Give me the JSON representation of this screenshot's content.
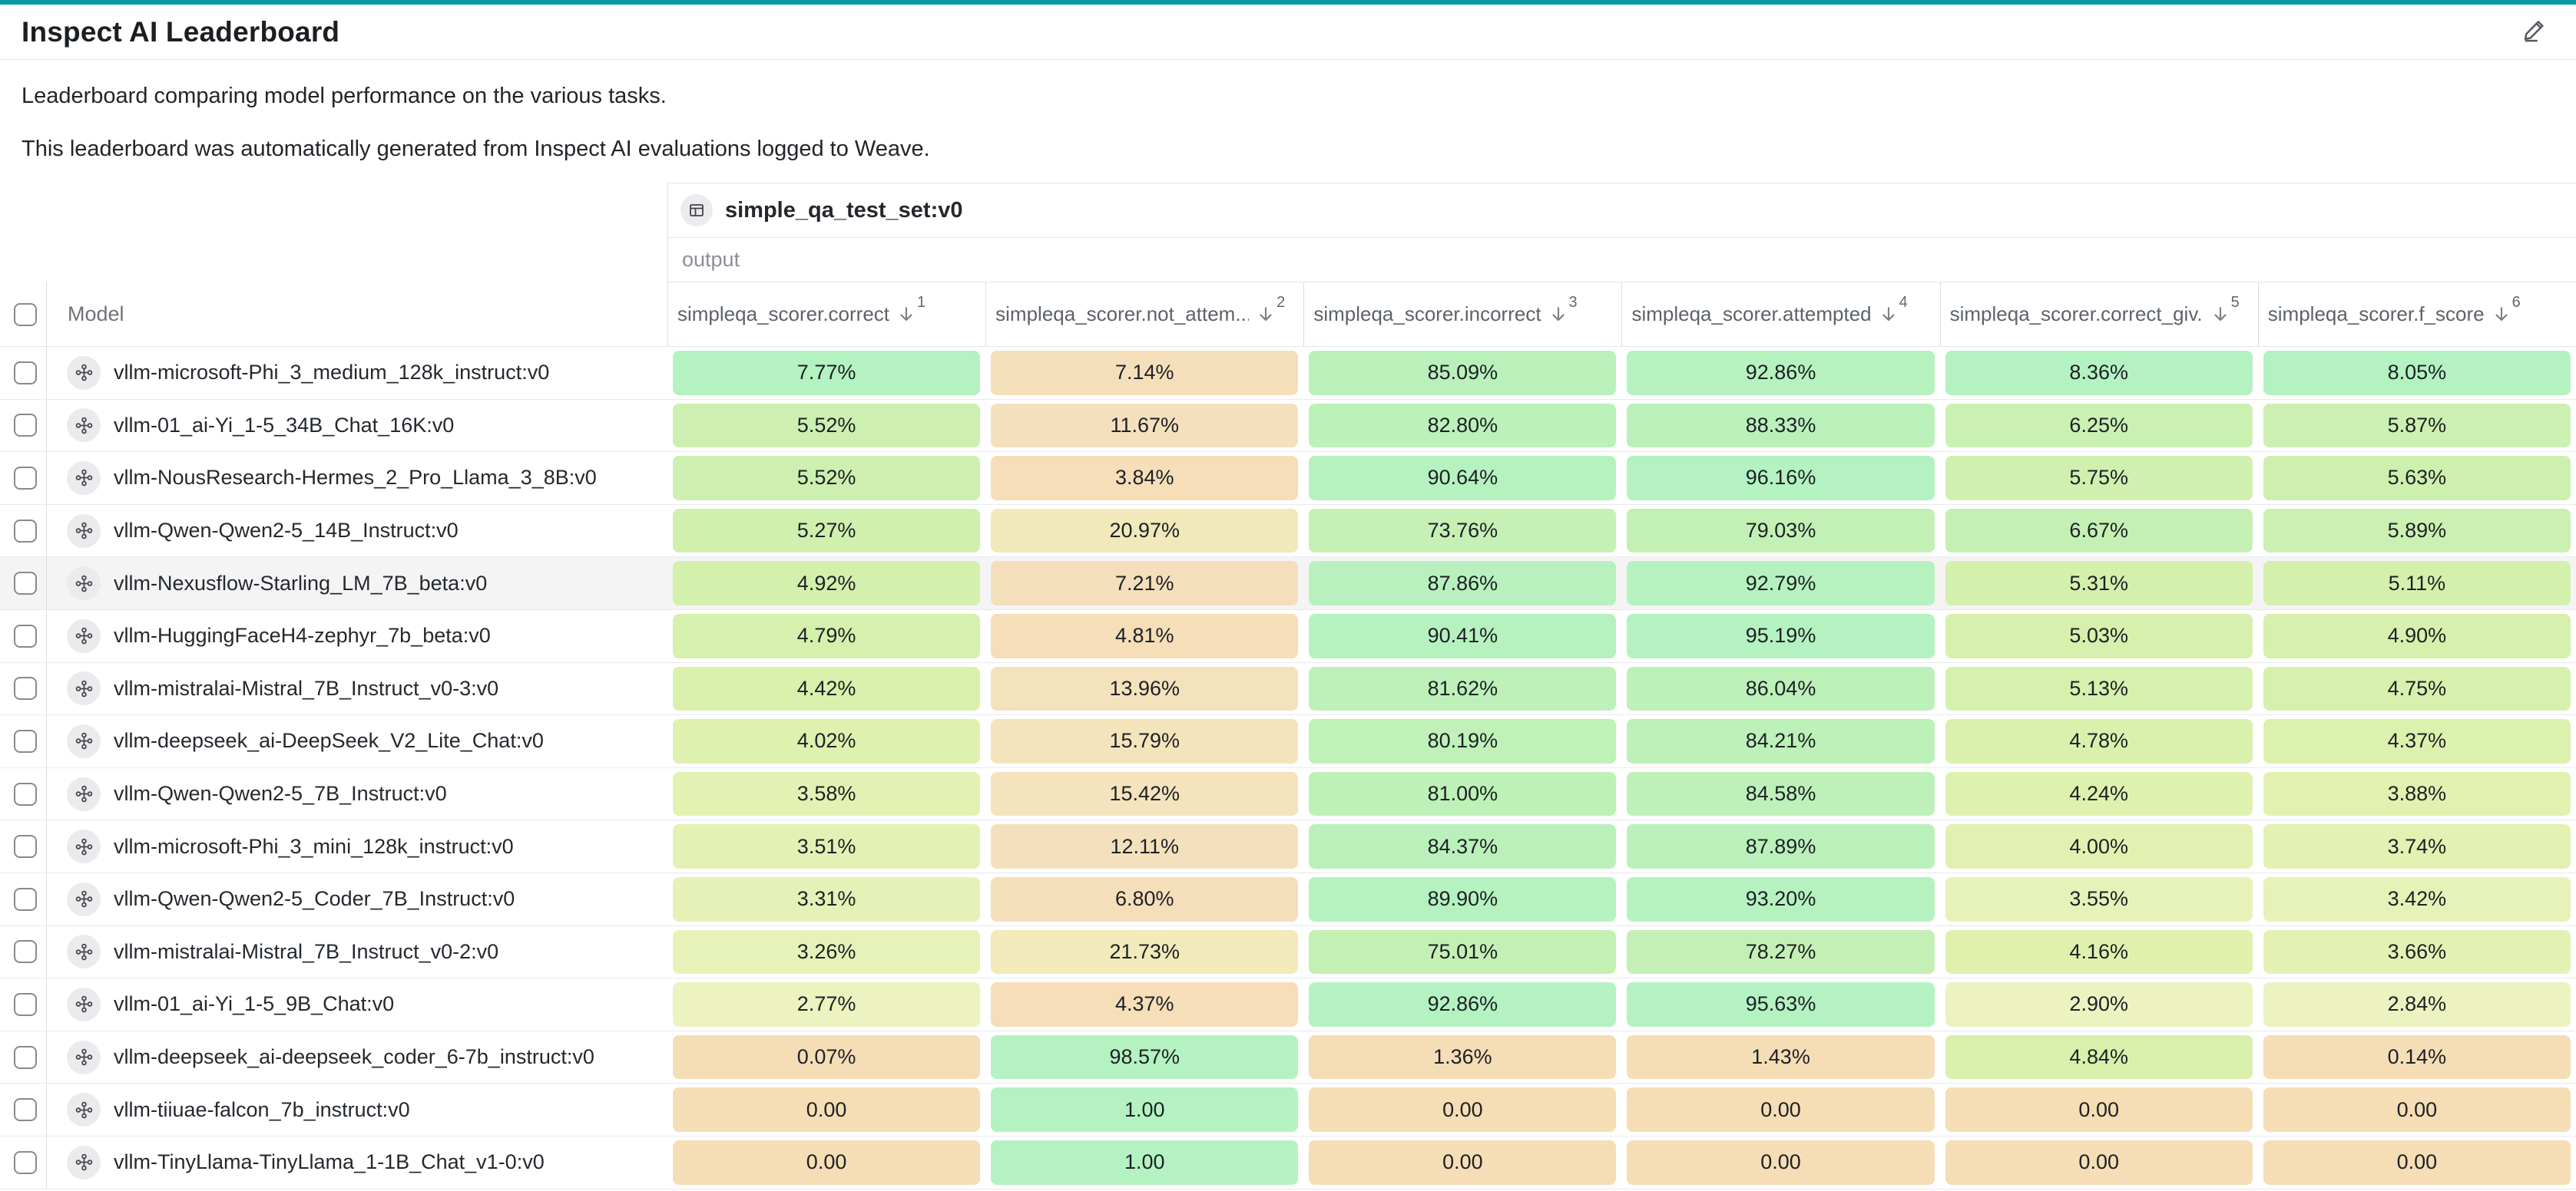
{
  "header": {
    "title": "Inspect AI Leaderboard"
  },
  "description": {
    "line1": "Leaderboard comparing model performance on the various tasks.",
    "line2": "This leaderboard was automatically generated from Inspect AI evaluations logged to Weave."
  },
  "colors": {
    "accent_bar": "#0899a2",
    "cell_gradient": [
      [
        0.0,
        "#f5ddb5"
      ],
      [
        0.12,
        "#f5e0bd"
      ],
      [
        0.22,
        "#f2eaba"
      ],
      [
        0.35,
        "#edf2c1"
      ],
      [
        0.5,
        "#e0f1ae"
      ],
      [
        0.65,
        "#d3f0ad"
      ],
      [
        0.8,
        "#c5f0b4"
      ],
      [
        0.9,
        "#bbf1ba"
      ],
      [
        1.0,
        "#b4f2c2"
      ]
    ]
  },
  "table": {
    "dataset_group": {
      "label": "simple_qa_test_set:v0",
      "icon": "table-icon"
    },
    "subgroup_label": "output",
    "model_column_header": "Model",
    "columns": [
      {
        "label": "simpleqa_scorer.correct",
        "sort_rank": "1"
      },
      {
        "label": "simpleqa_scorer.not_attem...",
        "sort_rank": "2"
      },
      {
        "label": "simpleqa_scorer.incorrect",
        "sort_rank": "3"
      },
      {
        "label": "simpleqa_scorer.attempted",
        "sort_rank": "4"
      },
      {
        "label": "simpleqa_scorer.correct_giv...",
        "sort_rank": "5"
      },
      {
        "label": "simpleqa_scorer.f_score",
        "sort_rank": "6"
      }
    ],
    "rows": [
      {
        "model": "vllm-microsoft-Phi_3_medium_128k_instruct:v0",
        "highlighted": false,
        "cells": [
          {
            "text": "7.77%",
            "value": 0.0777
          },
          {
            "text": "7.14%",
            "value": 0.0714
          },
          {
            "text": "85.09%",
            "value": 0.8509
          },
          {
            "text": "92.86%",
            "value": 0.9286
          },
          {
            "text": "8.36%",
            "value": 0.0836
          },
          {
            "text": "8.05%",
            "value": 0.0805
          }
        ]
      },
      {
        "model": "vllm-01_ai-Yi_1-5_34B_Chat_16K:v0",
        "highlighted": false,
        "cells": [
          {
            "text": "5.52%",
            "value": 0.0552
          },
          {
            "text": "11.67%",
            "value": 0.1167
          },
          {
            "text": "82.80%",
            "value": 0.828
          },
          {
            "text": "88.33%",
            "value": 0.8833
          },
          {
            "text": "6.25%",
            "value": 0.0625
          },
          {
            "text": "5.87%",
            "value": 0.0587
          }
        ]
      },
      {
        "model": "vllm-NousResearch-Hermes_2_Pro_Llama_3_8B:v0",
        "highlighted": false,
        "cells": [
          {
            "text": "5.52%",
            "value": 0.0552
          },
          {
            "text": "3.84%",
            "value": 0.0384
          },
          {
            "text": "90.64%",
            "value": 0.9064
          },
          {
            "text": "96.16%",
            "value": 0.9616
          },
          {
            "text": "5.75%",
            "value": 0.0575
          },
          {
            "text": "5.63%",
            "value": 0.0563
          }
        ]
      },
      {
        "model": "vllm-Qwen-Qwen2-5_14B_Instruct:v0",
        "highlighted": false,
        "cells": [
          {
            "text": "5.27%",
            "value": 0.0527
          },
          {
            "text": "20.97%",
            "value": 0.2097
          },
          {
            "text": "73.76%",
            "value": 0.7376
          },
          {
            "text": "79.03%",
            "value": 0.7903
          },
          {
            "text": "6.67%",
            "value": 0.0667
          },
          {
            "text": "5.89%",
            "value": 0.0589
          }
        ]
      },
      {
        "model": "vllm-Nexusflow-Starling_LM_7B_beta:v0",
        "highlighted": true,
        "cells": [
          {
            "text": "4.92%",
            "value": 0.0492
          },
          {
            "text": "7.21%",
            "value": 0.0721
          },
          {
            "text": "87.86%",
            "value": 0.8786
          },
          {
            "text": "92.79%",
            "value": 0.9279
          },
          {
            "text": "5.31%",
            "value": 0.0531
          },
          {
            "text": "5.11%",
            "value": 0.0511
          }
        ]
      },
      {
        "model": "vllm-HuggingFaceH4-zephyr_7b_beta:v0",
        "highlighted": false,
        "cells": [
          {
            "text": "4.79%",
            "value": 0.0479
          },
          {
            "text": "4.81%",
            "value": 0.0481
          },
          {
            "text": "90.41%",
            "value": 0.9041
          },
          {
            "text": "95.19%",
            "value": 0.9519
          },
          {
            "text": "5.03%",
            "value": 0.0503
          },
          {
            "text": "4.90%",
            "value": 0.049
          }
        ]
      },
      {
        "model": "vllm-mistralai-Mistral_7B_Instruct_v0-3:v0",
        "highlighted": false,
        "cells": [
          {
            "text": "4.42%",
            "value": 0.0442
          },
          {
            "text": "13.96%",
            "value": 0.1396
          },
          {
            "text": "81.62%",
            "value": 0.8162
          },
          {
            "text": "86.04%",
            "value": 0.8604
          },
          {
            "text": "5.13%",
            "value": 0.0513
          },
          {
            "text": "4.75%",
            "value": 0.0475
          }
        ]
      },
      {
        "model": "vllm-deepseek_ai-DeepSeek_V2_Lite_Chat:v0",
        "highlighted": false,
        "cells": [
          {
            "text": "4.02%",
            "value": 0.0402
          },
          {
            "text": "15.79%",
            "value": 0.1579
          },
          {
            "text": "80.19%",
            "value": 0.8019
          },
          {
            "text": "84.21%",
            "value": 0.8421
          },
          {
            "text": "4.78%",
            "value": 0.0478
          },
          {
            "text": "4.37%",
            "value": 0.0437
          }
        ]
      },
      {
        "model": "vllm-Qwen-Qwen2-5_7B_Instruct:v0",
        "highlighted": false,
        "cells": [
          {
            "text": "3.58%",
            "value": 0.0358
          },
          {
            "text": "15.42%",
            "value": 0.1542
          },
          {
            "text": "81.00%",
            "value": 0.81
          },
          {
            "text": "84.58%",
            "value": 0.8458
          },
          {
            "text": "4.24%",
            "value": 0.0424
          },
          {
            "text": "3.88%",
            "value": 0.0388
          }
        ]
      },
      {
        "model": "vllm-microsoft-Phi_3_mini_128k_instruct:v0",
        "highlighted": false,
        "cells": [
          {
            "text": "3.51%",
            "value": 0.0351
          },
          {
            "text": "12.11%",
            "value": 0.1211
          },
          {
            "text": "84.37%",
            "value": 0.8437
          },
          {
            "text": "87.89%",
            "value": 0.8789
          },
          {
            "text": "4.00%",
            "value": 0.04
          },
          {
            "text": "3.74%",
            "value": 0.0374
          }
        ]
      },
      {
        "model": "vllm-Qwen-Qwen2-5_Coder_7B_Instruct:v0",
        "highlighted": false,
        "cells": [
          {
            "text": "3.31%",
            "value": 0.0331
          },
          {
            "text": "6.80%",
            "value": 0.068
          },
          {
            "text": "89.90%",
            "value": 0.899
          },
          {
            "text": "93.20%",
            "value": 0.932
          },
          {
            "text": "3.55%",
            "value": 0.0355
          },
          {
            "text": "3.42%",
            "value": 0.0342
          }
        ]
      },
      {
        "model": "vllm-mistralai-Mistral_7B_Instruct_v0-2:v0",
        "highlighted": false,
        "cells": [
          {
            "text": "3.26%",
            "value": 0.0326
          },
          {
            "text": "21.73%",
            "value": 0.2173
          },
          {
            "text": "75.01%",
            "value": 0.7501
          },
          {
            "text": "78.27%",
            "value": 0.7827
          },
          {
            "text": "4.16%",
            "value": 0.0416
          },
          {
            "text": "3.66%",
            "value": 0.0366
          }
        ]
      },
      {
        "model": "vllm-01_ai-Yi_1-5_9B_Chat:v0",
        "highlighted": false,
        "cells": [
          {
            "text": "2.77%",
            "value": 0.0277
          },
          {
            "text": "4.37%",
            "value": 0.0437
          },
          {
            "text": "92.86%",
            "value": 0.9286
          },
          {
            "text": "95.63%",
            "value": 0.9563
          },
          {
            "text": "2.90%",
            "value": 0.029
          },
          {
            "text": "2.84%",
            "value": 0.0284
          }
        ]
      },
      {
        "model": "vllm-deepseek_ai-deepseek_coder_6-7b_instruct:v0",
        "highlighted": false,
        "cells": [
          {
            "text": "0.07%",
            "value": 0.0007
          },
          {
            "text": "98.57%",
            "value": 0.9857
          },
          {
            "text": "1.36%",
            "value": 0.0136
          },
          {
            "text": "1.43%",
            "value": 0.0143
          },
          {
            "text": "4.84%",
            "value": 0.0484
          },
          {
            "text": "0.14%",
            "value": 0.0014
          }
        ]
      },
      {
        "model": "vllm-tiiuae-falcon_7b_instruct:v0",
        "highlighted": false,
        "cells": [
          {
            "text": "0.00",
            "value": 0.0
          },
          {
            "text": "1.00",
            "value": 1.0
          },
          {
            "text": "0.00",
            "value": 0.0
          },
          {
            "text": "0.00",
            "value": 0.0
          },
          {
            "text": "0.00",
            "value": 0.0
          },
          {
            "text": "0.00",
            "value": 0.0
          }
        ]
      },
      {
        "model": "vllm-TinyLlama-TinyLlama_1-1B_Chat_v1-0:v0",
        "highlighted": false,
        "cells": [
          {
            "text": "0.00",
            "value": 0.0
          },
          {
            "text": "1.00",
            "value": 1.0
          },
          {
            "text": "0.00",
            "value": 0.0
          },
          {
            "text": "0.00",
            "value": 0.0
          },
          {
            "text": "0.00",
            "value": 0.0
          },
          {
            "text": "0.00",
            "value": 0.0
          }
        ]
      }
    ]
  }
}
